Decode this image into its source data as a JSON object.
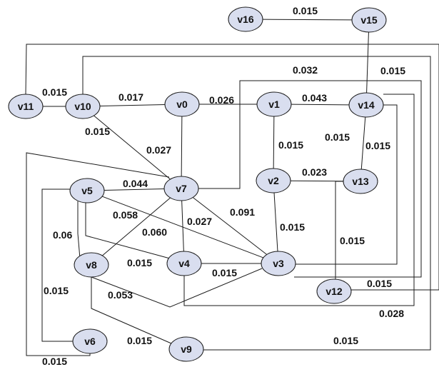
{
  "nodes": [
    {
      "id": "v16",
      "label": "v16"
    },
    {
      "id": "v15",
      "label": "v15"
    },
    {
      "id": "v11",
      "label": "v11"
    },
    {
      "id": "v10",
      "label": "v10"
    },
    {
      "id": "v0",
      "label": "v0"
    },
    {
      "id": "v1",
      "label": "v1"
    },
    {
      "id": "v14",
      "label": "v14"
    },
    {
      "id": "v2",
      "label": "v2"
    },
    {
      "id": "v13",
      "label": "v13"
    },
    {
      "id": "v5",
      "label": "v5"
    },
    {
      "id": "v7",
      "label": "v7"
    },
    {
      "id": "v8",
      "label": "v8"
    },
    {
      "id": "v4",
      "label": "v4"
    },
    {
      "id": "v3",
      "label": "v3"
    },
    {
      "id": "v12",
      "label": "v12"
    },
    {
      "id": "v6",
      "label": "v6"
    },
    {
      "id": "v9",
      "label": "v9"
    }
  ],
  "edges": [
    {
      "from": "v16",
      "to": "v15",
      "weight": "0.015"
    },
    {
      "from": "v15",
      "to": "v14",
      "weight": "0.015"
    },
    {
      "from": "v11",
      "to": "v10",
      "weight": "0.015"
    },
    {
      "from": "v10",
      "to": "v0",
      "weight": "0.017"
    },
    {
      "from": "v0",
      "to": "v1",
      "weight": "0.026"
    },
    {
      "from": "v1",
      "to": "v14",
      "weight": "0.043"
    },
    {
      "from": "v7",
      "to": "v14",
      "weight": "0.032"
    },
    {
      "from": "v10",
      "to": "v7",
      "weight": "0.015"
    },
    {
      "from": "v0",
      "to": "v7",
      "weight": "0.027"
    },
    {
      "from": "v1",
      "to": "v2",
      "weight": "0.015"
    },
    {
      "from": "v14",
      "to": "v13",
      "weight": "0.015"
    },
    {
      "from": "v14",
      "to": "v3",
      "weight": "0.015"
    },
    {
      "from": "v2",
      "to": "v13",
      "weight": "0.023"
    },
    {
      "from": "v5",
      "to": "v7",
      "weight": "0.044"
    },
    {
      "from": "v7",
      "to": "v3",
      "weight": "0.091"
    },
    {
      "from": "v5",
      "to": "v3",
      "weight": "0.058"
    },
    {
      "from": "v7",
      "to": "v4",
      "weight": "0.027"
    },
    {
      "from": "v2",
      "to": "v3",
      "weight": "0.015"
    },
    {
      "from": "v13",
      "to": "v12",
      "weight": "0.015"
    },
    {
      "from": "v5",
      "to": "v8",
      "weight": "0.06"
    },
    {
      "from": "v7",
      "to": "v8",
      "weight": "0.060"
    },
    {
      "from": "v5",
      "to": "v4",
      "weight": "0.015"
    },
    {
      "from": "v4",
      "to": "v3",
      "weight": "0.015"
    },
    {
      "from": "v8",
      "to": "v3",
      "weight": "0.053"
    },
    {
      "from": "v12",
      "to": "v11",
      "weight": "0.015"
    },
    {
      "from": "v4",
      "to": "v14",
      "weight": "0.028"
    },
    {
      "from": "v8",
      "to": "v9",
      "weight": "0.015"
    },
    {
      "from": "v9",
      "to": "v10",
      "weight": "0.015"
    },
    {
      "from": "v5",
      "to": "v6",
      "weight": "0.015"
    },
    {
      "from": "v6",
      "to": "v7",
      "weight": "0.015"
    }
  ]
}
